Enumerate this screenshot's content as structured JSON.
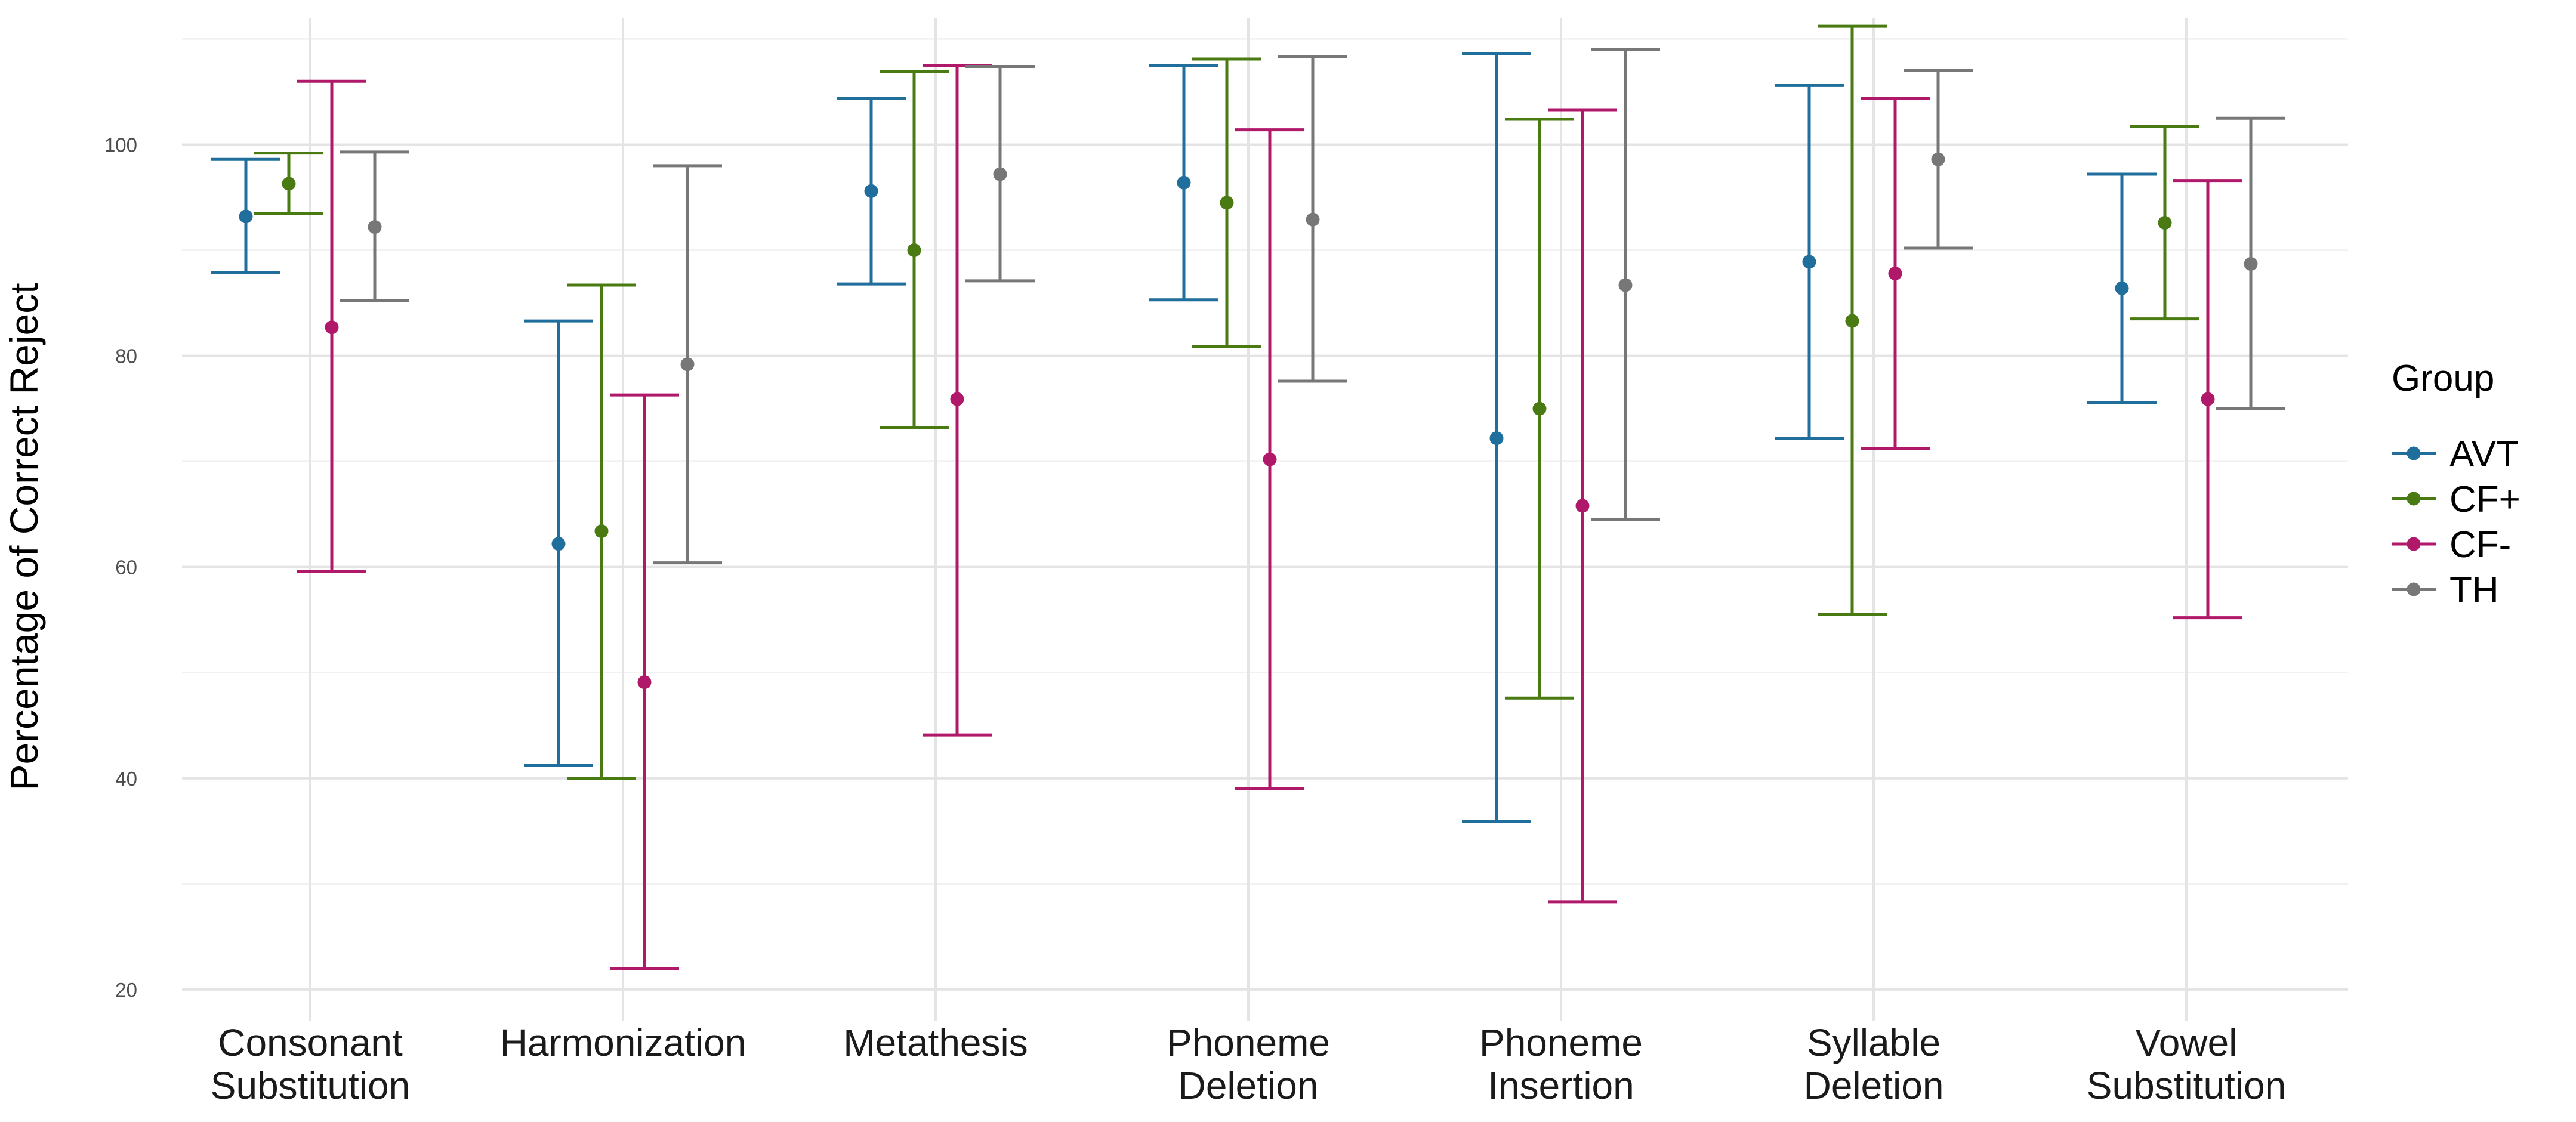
{
  "chart_data": {
    "type": "errorbar",
    "title": "",
    "xlabel": "",
    "ylabel": "Percentage of Correct Reject",
    "ylim": [
      17,
      112
    ],
    "yticks": [
      20,
      40,
      60,
      80,
      100
    ],
    "grid": true,
    "legend": {
      "title": "Group",
      "position": "right"
    },
    "categories": [
      [
        "Consonant",
        "Substitution"
      ],
      [
        "Harmonization"
      ],
      [
        "Metathesis"
      ],
      [
        "Phoneme",
        "Deletion"
      ],
      [
        "Phoneme",
        "Insertion"
      ],
      [
        "Syllable",
        "Deletion"
      ],
      [
        "Vowel",
        "Substitution"
      ]
    ],
    "series": [
      {
        "name": "AVT",
        "color": "#1f6e9c",
        "mean": [
          93.2,
          62.2,
          95.6,
          96.4,
          72.2,
          88.9,
          86.4
        ],
        "lower": [
          87.9,
          41.2,
          86.8,
          85.3,
          35.9,
          72.2,
          75.6
        ],
        "upper": [
          98.6,
          83.3,
          104.4,
          107.5,
          108.6,
          105.6,
          97.2
        ]
      },
      {
        "name": "CF+",
        "color": "#4a7a12",
        "mean": [
          96.3,
          63.4,
          90.0,
          94.5,
          75.0,
          83.3,
          92.6
        ],
        "lower": [
          93.5,
          40.0,
          73.2,
          80.9,
          47.6,
          55.5,
          83.5
        ],
        "upper": [
          99.2,
          86.7,
          106.9,
          108.1,
          102.4,
          111.2,
          101.7
        ]
      },
      {
        "name": "CF-",
        "color": "#b0196a",
        "mean": [
          82.7,
          49.1,
          75.9,
          70.2,
          65.8,
          87.8,
          75.9
        ],
        "lower": [
          59.6,
          22.0,
          44.1,
          39.0,
          28.3,
          71.2,
          55.2
        ],
        "upper": [
          106.0,
          76.3,
          107.5,
          101.4,
          103.3,
          104.4,
          96.6
        ]
      },
      {
        "name": "TH",
        "color": "#777777",
        "mean": [
          92.2,
          79.2,
          97.2,
          92.9,
          86.7,
          98.6,
          88.7
        ],
        "lower": [
          85.2,
          60.4,
          87.1,
          77.6,
          64.5,
          90.2,
          75.0
        ],
        "upper": [
          99.3,
          98.0,
          107.4,
          108.3,
          109.0,
          107.0,
          102.5
        ]
      }
    ]
  }
}
